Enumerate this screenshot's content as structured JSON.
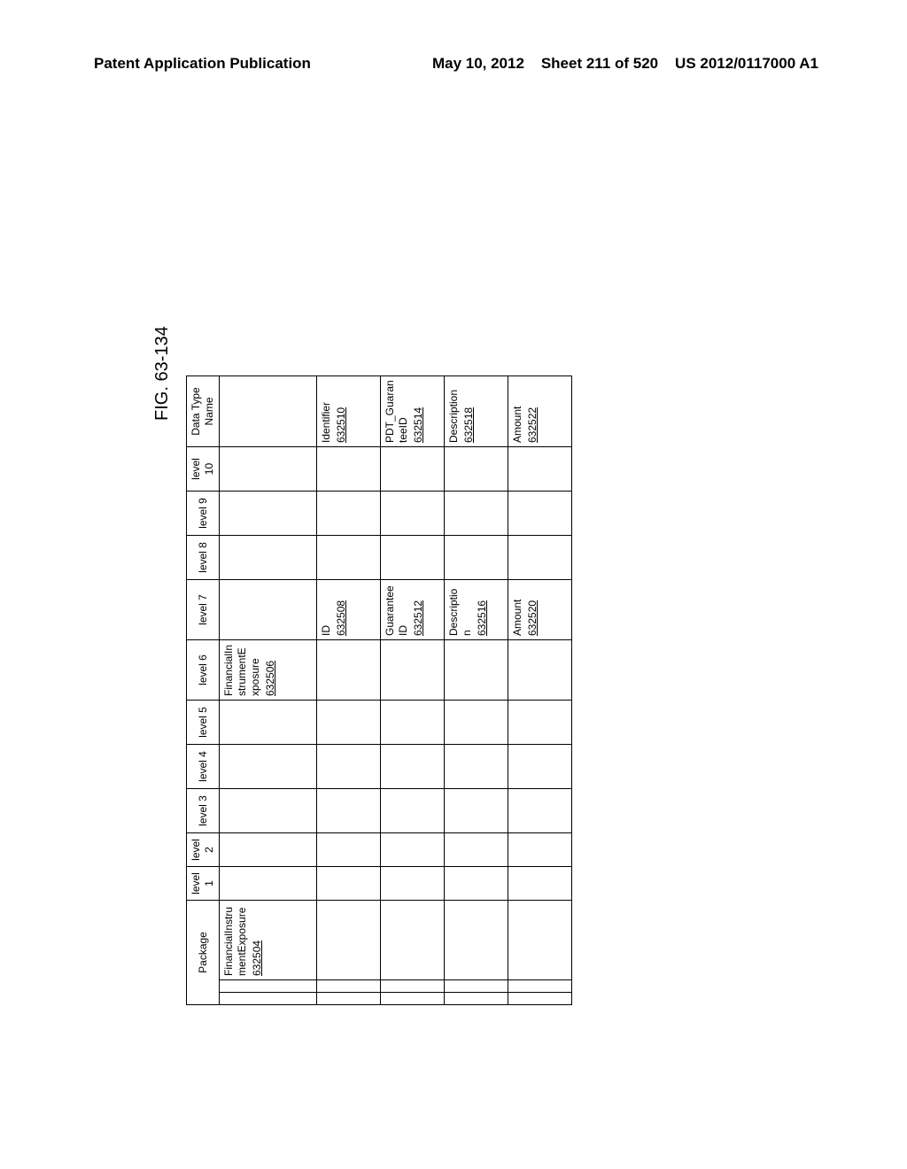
{
  "header": {
    "left": "Patent Application Publication",
    "right_date": "May 10, 2012",
    "right_sheet": "Sheet 211 of 520",
    "right_pubno": "US 2012/0117000 A1"
  },
  "figure_label": "FIG. 63-134",
  "table": {
    "columns": {
      "package": "Package",
      "level1": "level 1",
      "level2": "level 2",
      "level3": "level 3",
      "level4": "level 4",
      "level5": "level 5",
      "level6": "level 6",
      "level7": "level 7",
      "level8": "level 8",
      "level9": "level 9",
      "level10": "level 10",
      "datatype": "Data Type Name"
    },
    "rows": [
      {
        "package": {
          "text": "FinancialInstrumentExposure",
          "ref": "632504"
        },
        "level6": {
          "text": "FinancialInstrumentExposure",
          "ref": "632506"
        }
      },
      {
        "level7": {
          "text": "ID",
          "ref": "632508"
        },
        "datatype": {
          "text": "Identifier",
          "ref": "632510"
        }
      },
      {
        "level7": {
          "text": "GuaranteeID",
          "ref": "632512"
        },
        "datatype": {
          "text": "PDT_GuaranteeID",
          "ref": "632514"
        }
      },
      {
        "level7": {
          "text": "Description",
          "ref": "632516"
        },
        "datatype": {
          "text": "Description",
          "ref": "632518"
        }
      },
      {
        "level7": {
          "text": "Amount",
          "ref": "632520"
        },
        "datatype": {
          "text": "Amount",
          "ref": "632522"
        }
      }
    ]
  }
}
